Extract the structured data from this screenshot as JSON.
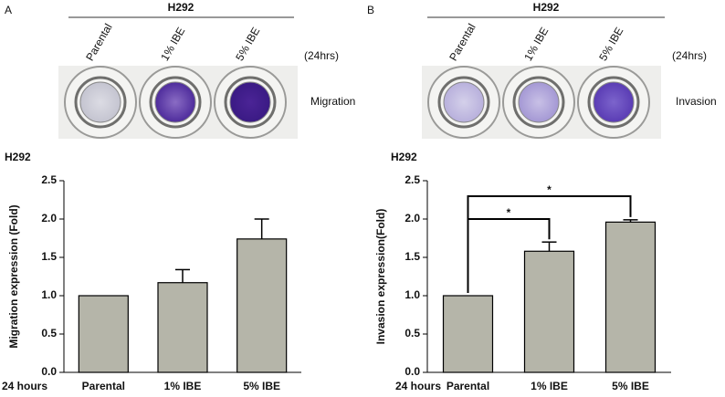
{
  "chart_data": [
    {
      "type": "bar",
      "panel_label": "A",
      "header": "H292",
      "image_labels": [
        "Parental",
        "1% IBE",
        "5% IBE"
      ],
      "image_note": "(24hrs)",
      "image_caption": "Migration",
      "title": "H292",
      "y_label": "Migration expression (Fold)",
      "x_prefix": "24 hours",
      "categories": [
        "Parental",
        "1% IBE",
        "5% IBE"
      ],
      "values": [
        1.0,
        1.17,
        1.74
      ],
      "errors": [
        null,
        0.17,
        0.26
      ],
      "color": "#b5b5a9",
      "ylim": [
        0,
        2.5
      ],
      "yticks": [
        {
          "value": 0,
          "label": "0.0"
        },
        0.5,
        {
          "value": 1,
          "label": "1.0"
        },
        1.5,
        {
          "value": 2,
          "label": "2.0"
        },
        2.5
      ],
      "significance": []
    },
    {
      "type": "bar",
      "panel_label": "B",
      "header": "H292",
      "image_labels": [
        "Parental",
        "1% IBE",
        "5% IBE"
      ],
      "image_note": "(24hrs)",
      "image_caption": "Invasion",
      "title": "H292",
      "y_label": "Invasion expression(Fold)",
      "x_prefix": "24 hours",
      "categories": [
        "Parental",
        "1% IBE",
        "5% IBE"
      ],
      "values": [
        1.0,
        1.58,
        1.96
      ],
      "errors": [
        null,
        0.12,
        0.03
      ],
      "color": "#b5b5a9",
      "ylim": [
        0,
        2.5
      ],
      "yticks": [
        {
          "value": 0,
          "label": "0.0"
        },
        0.5,
        {
          "value": 1,
          "label": "1.0"
        },
        1.5,
        {
          "value": 2,
          "label": "2.0"
        },
        2.5
      ],
      "significance": [
        {
          "from": 0,
          "to": 1,
          "label": "*"
        },
        {
          "from": 0,
          "to": 2,
          "label": "*"
        }
      ]
    }
  ]
}
